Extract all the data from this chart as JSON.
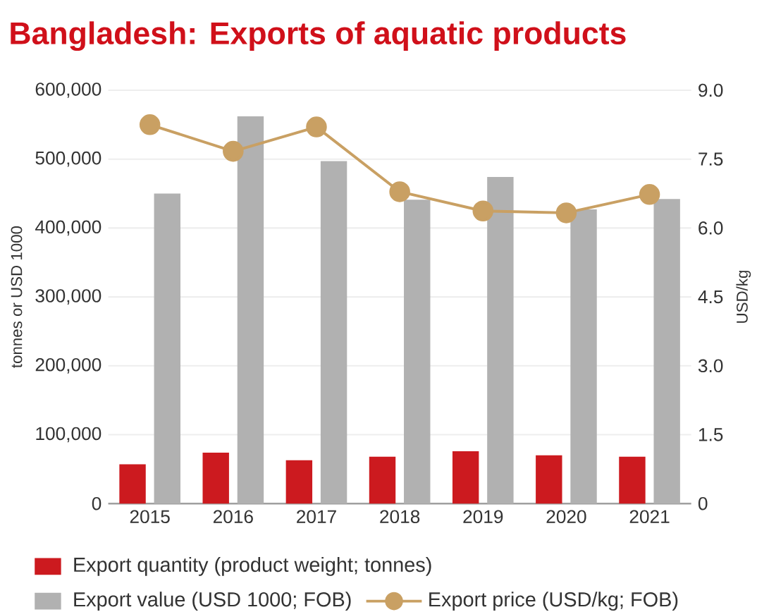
{
  "chart_data": {
    "type": "bar",
    "title": "Bangladesh:  Exports of aquatic products",
    "ylabel": "tonnes or USD 1000",
    "y2label": "USD/kg",
    "categories": [
      "2015",
      "2016",
      "2017",
      "2018",
      "2019",
      "2020",
      "2021"
    ],
    "series": [
      {
        "name": "Export quantity (product weight; tonnes)",
        "color": "#cc1a1f",
        "values": [
          57000,
          74000,
          63000,
          68000,
          76000,
          70000,
          68000
        ]
      },
      {
        "name": "Export value (USD 1000; FOB)",
        "color": "#b1b1b1",
        "values": [
          450000,
          562000,
          497000,
          441000,
          474000,
          427000,
          442000
        ]
      },
      {
        "name": "Export price (USD/kg; FOB)",
        "type": "line",
        "axis": "y2",
        "marker": "circle",
        "color": "#c9a063",
        "values": [
          8.25,
          7.67,
          8.2,
          6.79,
          6.37,
          6.33,
          6.73
        ]
      }
    ],
    "ylim": [
      0,
      600000
    ],
    "yticks": [
      0,
      {
        "value": 100000,
        "label": "100,000"
      },
      {
        "value": 200000,
        "label": "200,000"
      },
      {
        "value": 300000,
        "label": "300,000"
      },
      {
        "value": 400000,
        "label": "400,000"
      },
      {
        "value": 500000,
        "label": "500,000"
      },
      {
        "value": 600000,
        "label": "600,000"
      }
    ],
    "y2lim": [
      0,
      9
    ],
    "y2ticks": [
      0,
      1.5,
      {
        "value": 3,
        "label": "3.0"
      },
      4.5,
      {
        "value": 6,
        "label": "6.0"
      },
      7.5,
      {
        "value": 9,
        "label": "9.0"
      }
    ],
    "grid": "y",
    "legend": "bottom"
  }
}
